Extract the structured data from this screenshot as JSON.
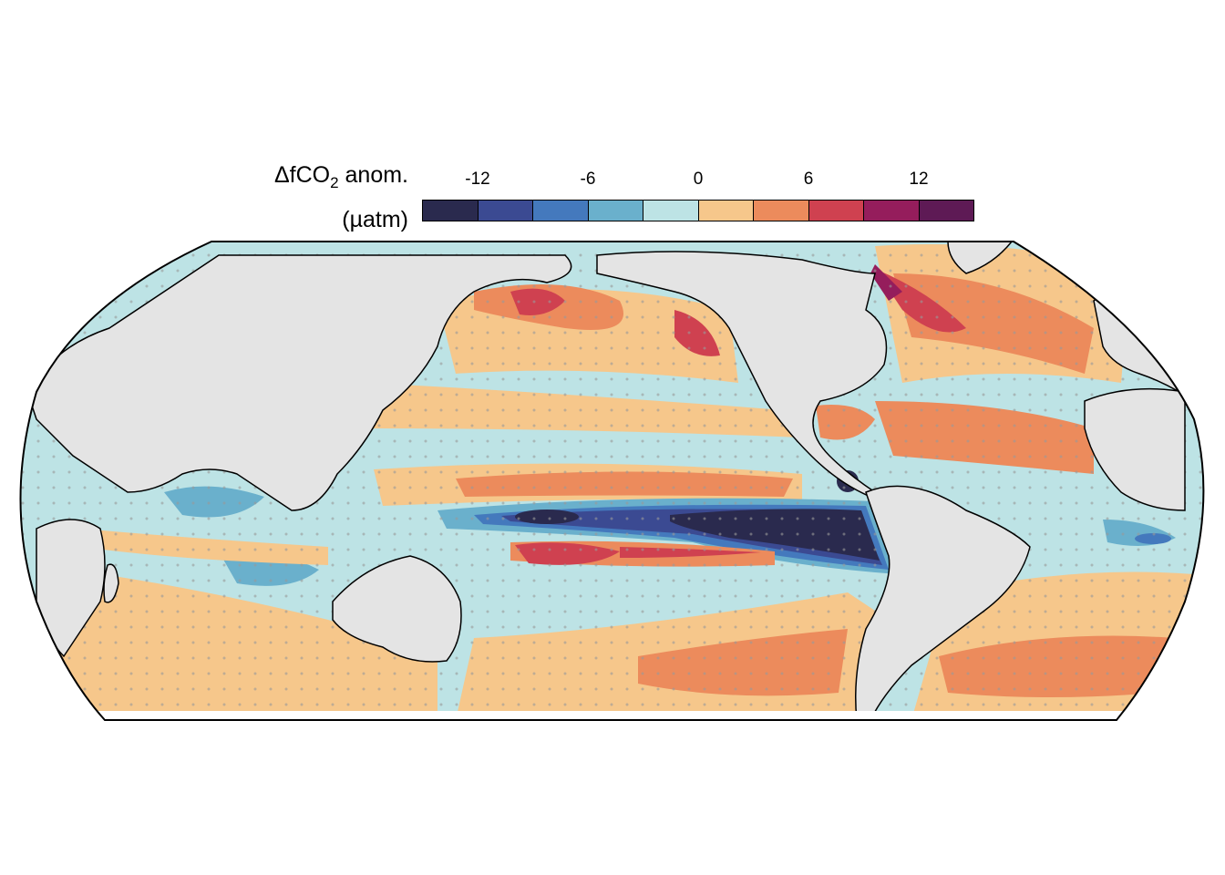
{
  "legend": {
    "title_prefix": "ΔfCO",
    "title_sub": "2",
    "title_suffix": " anom.",
    "unit": "(µatm)",
    "ticks": [
      "-12",
      "-6",
      "0",
      "6",
      "12"
    ],
    "colors": [
      "#2a2a4e",
      "#3b4a92",
      "#4479bd",
      "#6ab0cc",
      "#bde3e5",
      "#f6c78b",
      "#ec8b5c",
      "#cf4150",
      "#951d5c",
      "#5e1a55"
    ]
  },
  "map_colors": {
    "land": "#e4e4e4",
    "nodata": "#ffffff",
    "stipple": "#999999"
  }
}
